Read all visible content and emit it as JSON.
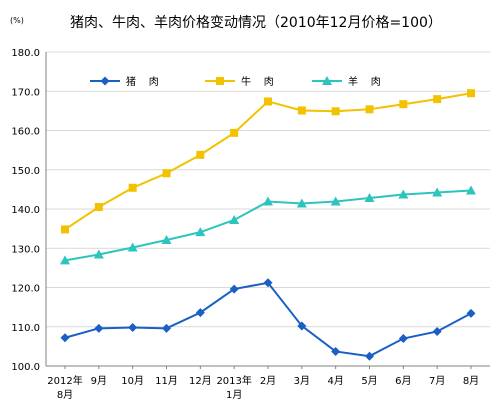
{
  "chart_data": {
    "type": "line",
    "title": "猪肉、牛肉、羊肉价格变动情况（2010年12月价格=100）",
    "unit": "(%)",
    "xlabel": "",
    "ylabel": "",
    "ylim": [
      100,
      180
    ],
    "y_ticks": [
      "100.0",
      "110.0",
      "120.0",
      "130.0",
      "140.0",
      "150.0",
      "160.0",
      "170.0",
      "180.0"
    ],
    "categories": [
      [
        "2012年",
        "8月"
      ],
      [
        "9月"
      ],
      [
        "10月"
      ],
      [
        "11月"
      ],
      [
        "12月"
      ],
      [
        "2013年",
        "1月"
      ],
      [
        "2月"
      ],
      [
        "3月"
      ],
      [
        "4月"
      ],
      [
        "5月"
      ],
      [
        "6月"
      ],
      [
        "7月"
      ],
      [
        "8月"
      ]
    ],
    "grid": true,
    "legend_position": "top-left",
    "series": [
      {
        "name": "猪    肉",
        "color": "#1a5fc4",
        "marker": "diamond",
        "values": [
          107.2,
          109.6,
          109.8,
          109.6,
          113.6,
          119.6,
          121.2,
          110.2,
          103.7,
          102.5,
          107.0,
          108.8,
          113.4
        ]
      },
      {
        "name": "牛    肉",
        "color": "#f2c200",
        "marker": "square",
        "values": [
          134.8,
          140.5,
          145.4,
          149.1,
          153.8,
          159.4,
          167.4,
          165.1,
          164.9,
          165.4,
          166.7,
          168.0,
          169.5
        ]
      },
      {
        "name": "羊    肉",
        "color": "#2ec4be",
        "marker": "triangle",
        "values": [
          126.9,
          128.4,
          130.2,
          132.1,
          134.1,
          137.2,
          141.9,
          141.4,
          141.9,
          142.8,
          143.7,
          144.2,
          144.7
        ]
      }
    ]
  }
}
